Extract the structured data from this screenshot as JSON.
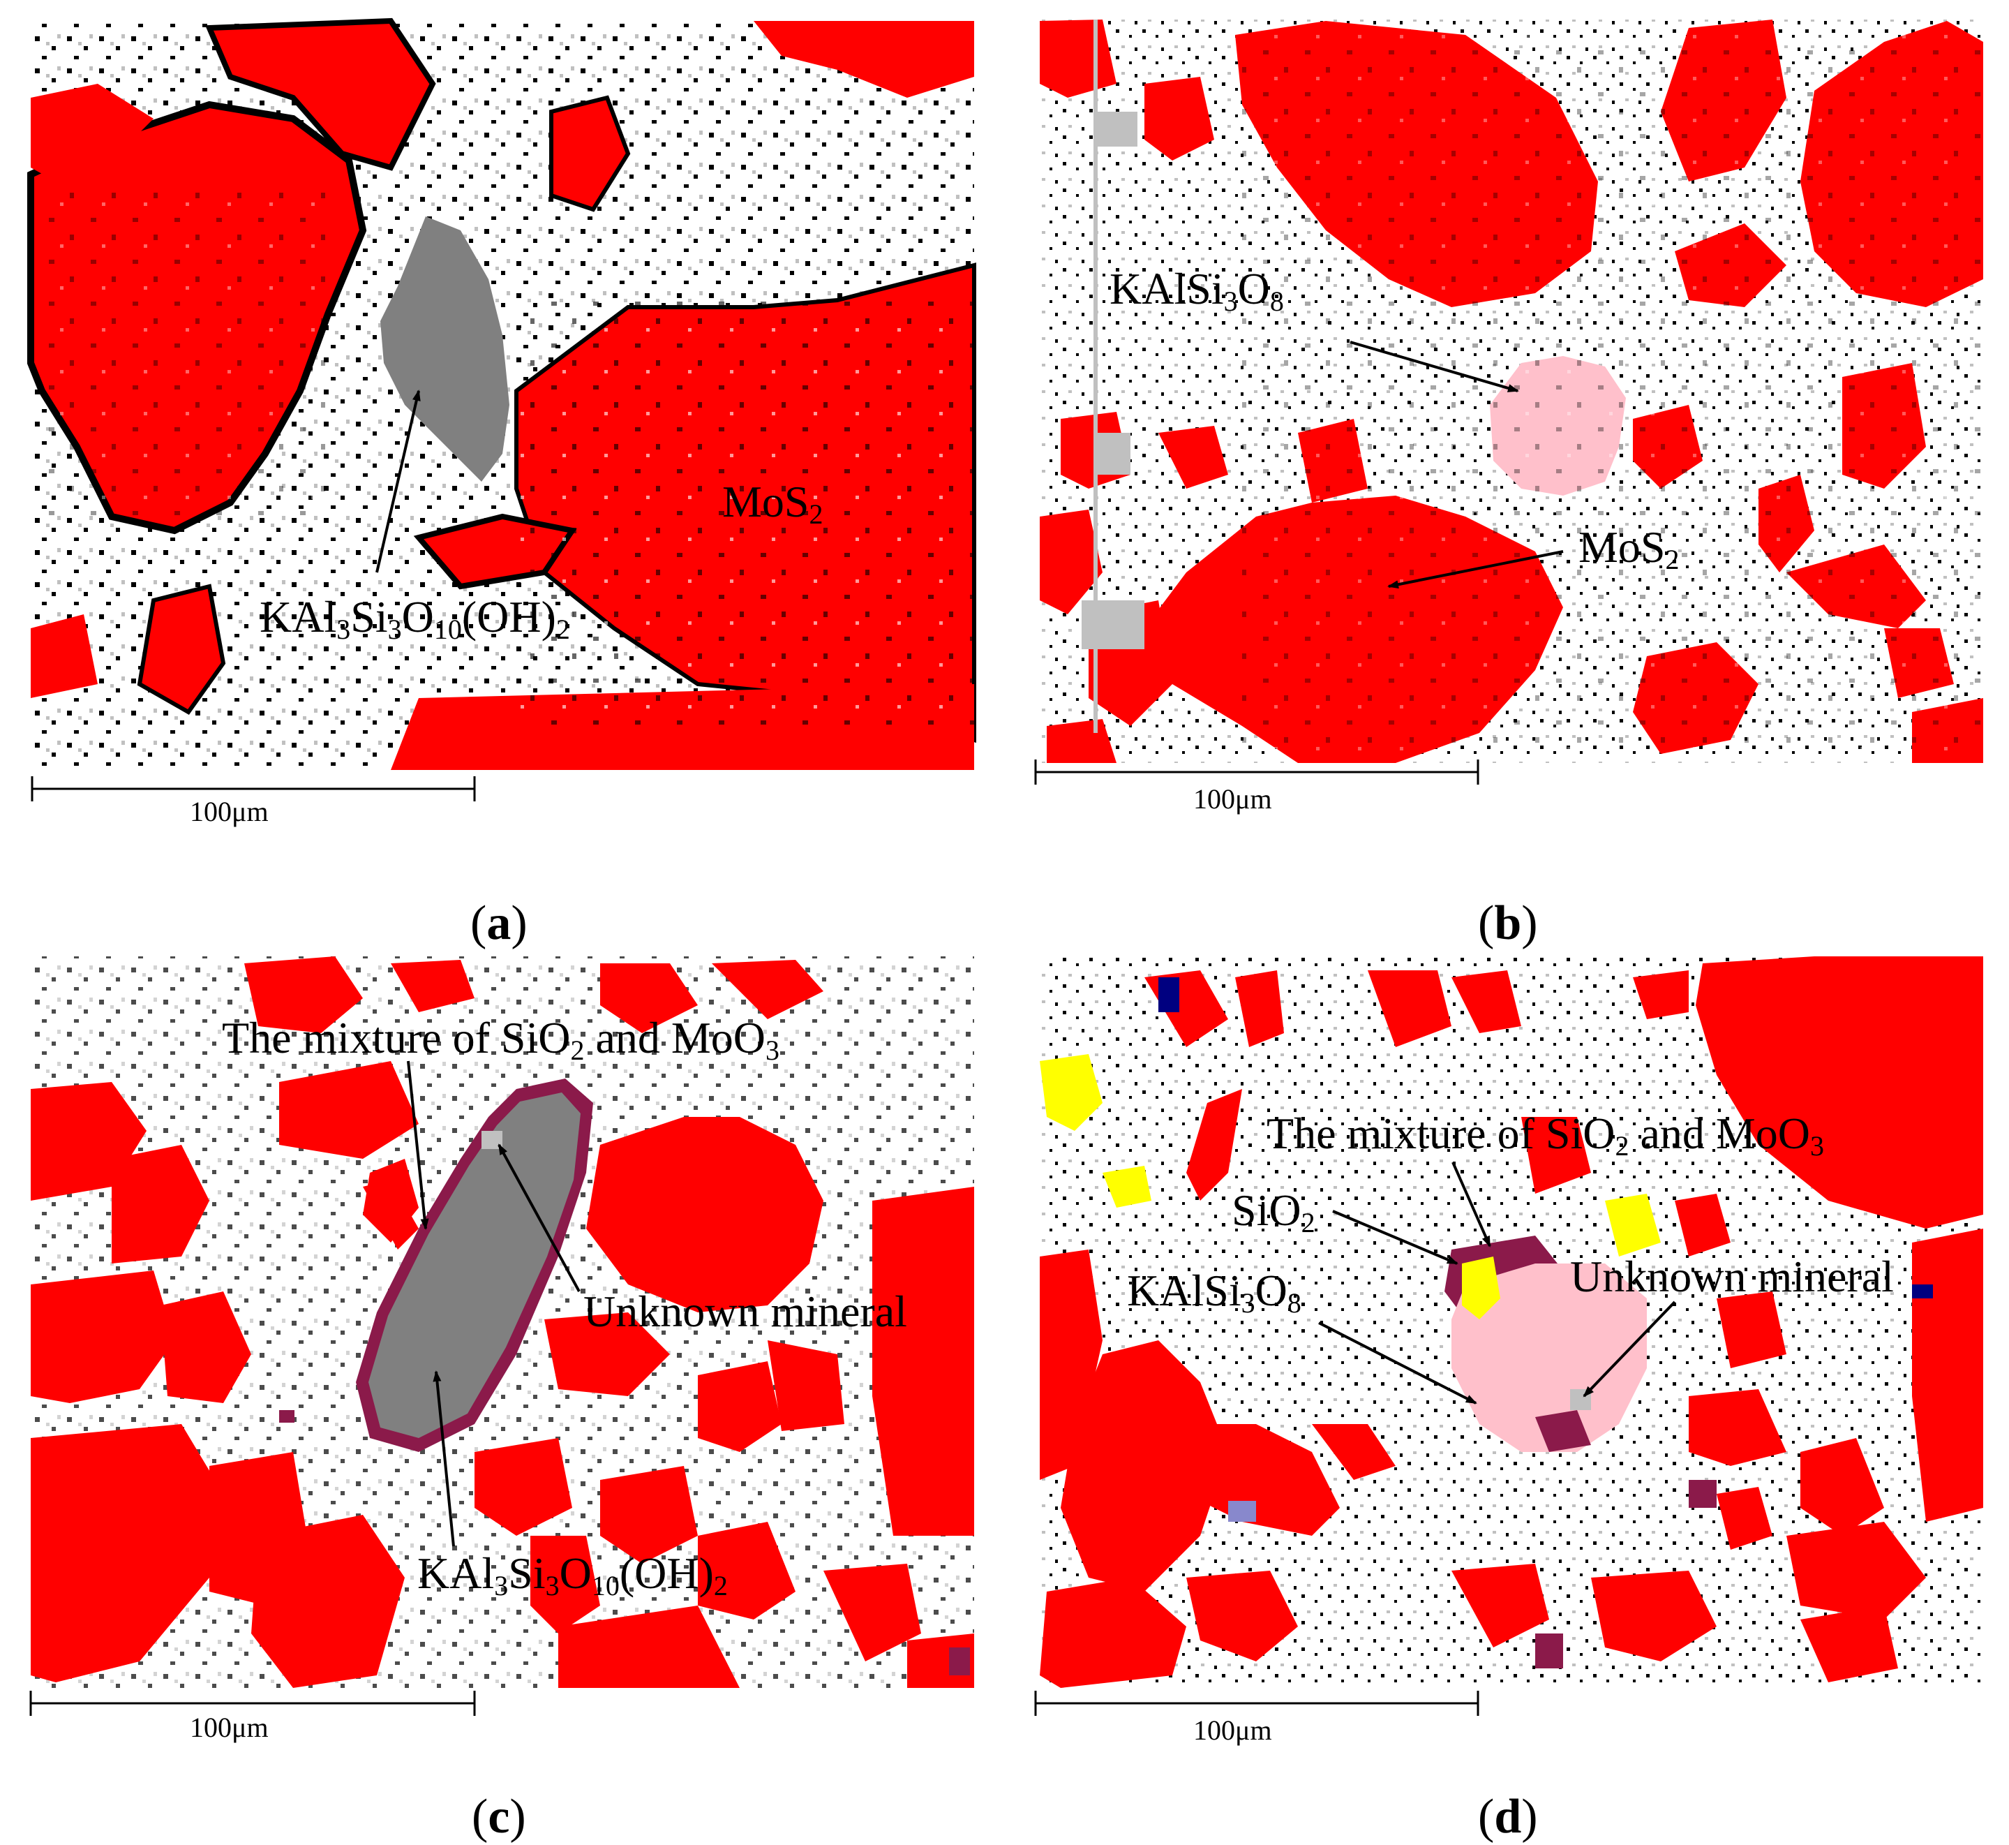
{
  "colors": {
    "mos2": "#ff0000",
    "muscovite": "#808080",
    "kfeldspar": "#ffc0cb",
    "sio2": "#ffff00",
    "mixture": "#8b1a4a",
    "pores": "#000000",
    "minor": "#c0c0c0",
    "background": "#ffffff",
    "navy": "#000080",
    "lavender": "#8888cc"
  },
  "panels": [
    {
      "letter": "a",
      "scale_bar": "100μm",
      "labels": {
        "mineral1": {
          "base": "KAl",
          "s1": "3",
          "mid1": "Si",
          "s2": "3",
          "mid2": "O",
          "s3": "10",
          "tail": "(OH)",
          "s4": "2"
        },
        "mineral2": {
          "base": "MoS",
          "s1": "2"
        }
      }
    },
    {
      "letter": "b",
      "scale_bar": "100μm",
      "labels": {
        "mineral1": {
          "base": "KAlSi",
          "s1": "3",
          "mid1": "O",
          "s2": "8"
        },
        "mineral2": {
          "base": "MoS",
          "s1": "2"
        }
      }
    },
    {
      "letter": "c",
      "scale_bar": "100μm",
      "labels": {
        "mixture": {
          "base": "The mixture of SiO",
          "s1": "2",
          "tail": " and MoO",
          "s2": "3"
        },
        "unknown": "Unknown mineral",
        "mineral1": {
          "base": "KAl",
          "s1": "3",
          "mid1": "Si",
          "s2": "3",
          "mid2": "O",
          "s3": "10",
          "tail": "(OH)",
          "s4": "2"
        }
      }
    },
    {
      "letter": "d",
      "scale_bar": "100μm",
      "labels": {
        "mixture": {
          "base": "The mixture of SiO",
          "s1": "2",
          "tail": " and MoO",
          "s2": "3"
        },
        "sio2": {
          "base": "SiO",
          "s1": "2"
        },
        "mineral1": {
          "base": "KAlSi",
          "s1": "3",
          "mid1": "O",
          "s2": "8"
        },
        "unknown": "Unknown mineral"
      }
    }
  ]
}
